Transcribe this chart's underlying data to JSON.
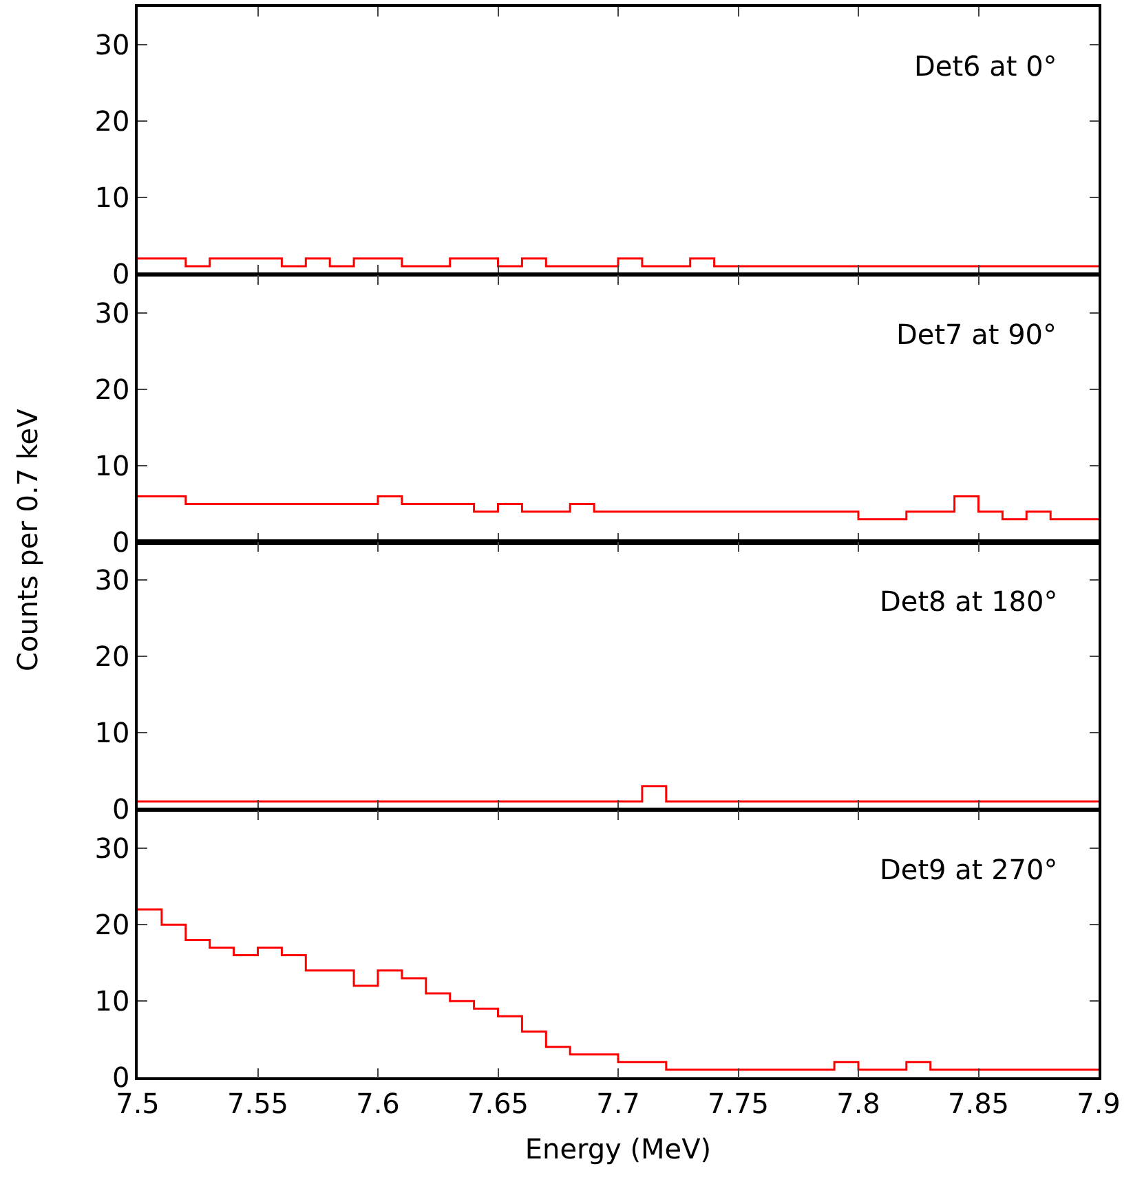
{
  "chart_data": [
    {
      "type": "histogram",
      "title": "Det6 at 0°",
      "ylabel": "Counts per 0.7 keV",
      "bins": [
        7.5,
        7.51,
        7.52,
        7.53,
        7.54,
        7.55,
        7.56,
        7.57,
        7.58,
        7.59,
        7.6,
        7.61,
        7.62,
        7.63,
        7.64,
        7.65,
        7.66,
        7.67,
        7.68,
        7.69,
        7.7,
        7.71,
        7.72,
        7.73,
        7.74,
        7.75,
        7.76,
        7.77,
        7.78,
        7.79,
        7.8,
        7.81,
        7.82,
        7.83,
        7.84,
        7.85,
        7.86,
        7.87,
        7.88,
        7.89,
        7.9
      ],
      "values": [
        2,
        2,
        1,
        2,
        2,
        2,
        1,
        2,
        1,
        2,
        2,
        1,
        1,
        2,
        2,
        1,
        2,
        1,
        1,
        1,
        2,
        1,
        1,
        2,
        1,
        1,
        1,
        1,
        1,
        1,
        1,
        1,
        1,
        1,
        1,
        1,
        1,
        1,
        1,
        1
      ],
      "color": "#ff0000",
      "xlim": [
        7.5,
        7.9
      ],
      "xticks": [
        7.5,
        7.55,
        7.6,
        7.65,
        7.7,
        7.75,
        7.8,
        7.85,
        7.9
      ],
      "ylim": [
        0,
        35
      ],
      "yticks": [
        0,
        10,
        20,
        30
      ],
      "tick_labels": "y"
    },
    {
      "type": "histogram",
      "title": "Det7 at 90°",
      "bins": [
        7.5,
        7.51,
        7.52,
        7.53,
        7.54,
        7.55,
        7.56,
        7.57,
        7.58,
        7.59,
        7.6,
        7.61,
        7.62,
        7.63,
        7.64,
        7.65,
        7.66,
        7.67,
        7.68,
        7.69,
        7.7,
        7.71,
        7.72,
        7.73,
        7.74,
        7.75,
        7.76,
        7.77,
        7.78,
        7.79,
        7.8,
        7.81,
        7.82,
        7.83,
        7.84,
        7.85,
        7.86,
        7.87,
        7.88,
        7.89,
        7.9
      ],
      "values": [
        6,
        6,
        5,
        5,
        5,
        5,
        5,
        5,
        5,
        5,
        6,
        5,
        5,
        5,
        4,
        5,
        4,
        4,
        5,
        4,
        4,
        4,
        4,
        4,
        4,
        4,
        4,
        4,
        4,
        4,
        3,
        3,
        4,
        4,
        6,
        4,
        3,
        4,
        3,
        3
      ],
      "color": "#ff0000",
      "xlim": [
        7.5,
        7.9
      ],
      "xticks": [
        7.5,
        7.55,
        7.6,
        7.65,
        7.7,
        7.75,
        7.8,
        7.85,
        7.9
      ],
      "ylim": [
        0,
        35
      ],
      "yticks": [
        0,
        10,
        20,
        30
      ],
      "tick_labels": "y"
    },
    {
      "type": "histogram",
      "title": "Det8 at 180°",
      "bins": [
        7.5,
        7.51,
        7.52,
        7.53,
        7.54,
        7.55,
        7.56,
        7.57,
        7.58,
        7.59,
        7.6,
        7.61,
        7.62,
        7.63,
        7.64,
        7.65,
        7.66,
        7.67,
        7.68,
        7.69,
        7.7,
        7.71,
        7.72,
        7.73,
        7.74,
        7.75,
        7.76,
        7.77,
        7.78,
        7.79,
        7.8,
        7.81,
        7.82,
        7.83,
        7.84,
        7.85,
        7.86,
        7.87,
        7.88,
        7.89,
        7.9
      ],
      "values": [
        1,
        1,
        1,
        1,
        1,
        1,
        1,
        1,
        1,
        1,
        1,
        1,
        1,
        1,
        1,
        1,
        1,
        1,
        1,
        1,
        1,
        3,
        1,
        1,
        1,
        1,
        1,
        1,
        1,
        1,
        1,
        1,
        1,
        1,
        1,
        1,
        1,
        1,
        1,
        1
      ],
      "color": "#ff0000",
      "xlim": [
        7.5,
        7.9
      ],
      "xticks": [
        7.5,
        7.55,
        7.6,
        7.65,
        7.7,
        7.75,
        7.8,
        7.85,
        7.9
      ],
      "ylim": [
        0,
        35
      ],
      "yticks": [
        0,
        10,
        20,
        30
      ],
      "tick_labels": "y"
    },
    {
      "type": "histogram",
      "title": "Det9 at 270°",
      "xlabel": "Energy (MeV)",
      "bins": [
        7.5,
        7.51,
        7.52,
        7.53,
        7.54,
        7.55,
        7.56,
        7.57,
        7.58,
        7.59,
        7.6,
        7.61,
        7.62,
        7.63,
        7.64,
        7.65,
        7.66,
        7.67,
        7.68,
        7.69,
        7.7,
        7.71,
        7.72,
        7.73,
        7.74,
        7.75,
        7.76,
        7.77,
        7.78,
        7.79,
        7.8,
        7.81,
        7.82,
        7.83,
        7.84,
        7.85,
        7.86,
        7.87,
        7.88,
        7.89,
        7.9
      ],
      "values": [
        22,
        20,
        18,
        17,
        16,
        17,
        16,
        14,
        14,
        12,
        14,
        13,
        11,
        10,
        9,
        8,
        6,
        4,
        3,
        3,
        2,
        2,
        1,
        1,
        1,
        1,
        1,
        1,
        1,
        2,
        1,
        1,
        2,
        1,
        1,
        1,
        1,
        1,
        1,
        1
      ],
      "color": "#ff0000",
      "xlim": [
        7.5,
        7.9
      ],
      "xticks": [
        7.5,
        7.55,
        7.6,
        7.65,
        7.7,
        7.75,
        7.8,
        7.85,
        7.9
      ],
      "ylim": [
        0,
        35
      ],
      "yticks": [
        0,
        10,
        20,
        30
      ]
    }
  ]
}
